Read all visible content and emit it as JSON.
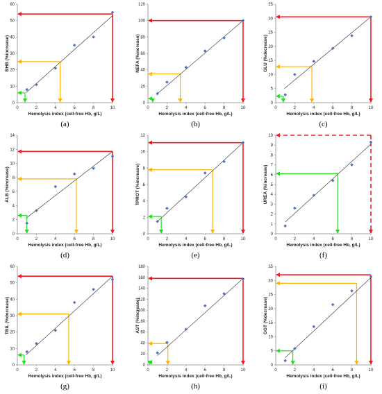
{
  "chart_data": [
    {
      "type": "scatter",
      "label": "(a)",
      "ylabel": "BHB (%increase)",
      "xlabel": "Hemolysis index (cell-free Hb, g/L)",
      "xlim": [
        0,
        10
      ],
      "ylim": [
        0,
        60
      ],
      "xticks": [
        0,
        2,
        4,
        6,
        8,
        10
      ],
      "yticks": [
        0,
        10,
        20,
        30,
        40,
        50,
        60
      ],
      "points": {
        "x": [
          1,
          2,
          4,
          6,
          8,
          10
        ],
        "y": [
          8,
          11,
          21,
          35,
          40,
          55
        ]
      },
      "fit": {
        "x": [
          0.9,
          10
        ],
        "y": [
          6,
          53
        ]
      },
      "arrows": [
        {
          "color": "#ee1c24",
          "x": 10,
          "y": 54,
          "dashed": false
        },
        {
          "color": "#ffb300",
          "x": 4.5,
          "y": 25
        },
        {
          "color": "#22dd22",
          "x": 0.8,
          "y": 6
        }
      ]
    },
    {
      "type": "scatter",
      "label": "(b)",
      "ylabel": "NEFA (%increase)",
      "xlabel": "Hemolysis index (cell-free Hb, g/L)",
      "xlim": [
        0,
        10
      ],
      "ylim": [
        0,
        120
      ],
      "xticks": [
        0,
        2,
        4,
        6,
        8,
        10
      ],
      "yticks": [
        0,
        20,
        40,
        60,
        80,
        100,
        120
      ],
      "points": {
        "x": [
          1,
          2,
          4,
          6,
          8,
          10
        ],
        "y": [
          11,
          25,
          43,
          63,
          79,
          100
        ]
      },
      "fit": {
        "x": [
          0.9,
          10
        ],
        "y": [
          10,
          100
        ]
      },
      "arrows": [
        {
          "color": "#ee1c24",
          "x": 10,
          "y": 100,
          "dashed": false
        },
        {
          "color": "#ffb300",
          "x": 3.4,
          "y": 35
        },
        {
          "color": "#22dd22",
          "x": 0.5,
          "y": 5
        }
      ]
    },
    {
      "type": "scatter",
      "label": "(c)",
      "ylabel": "GLU (%decrease)",
      "xlabel": "Hemolysis index (cell-free Hb, g/L)",
      "xlim": [
        0,
        10
      ],
      "ylim": [
        0,
        35
      ],
      "xticks": [
        0,
        2,
        4,
        6,
        8,
        10
      ],
      "yticks": [
        0,
        5,
        10,
        15,
        20,
        25,
        30,
        35
      ],
      "points": {
        "x": [
          1,
          2,
          4,
          6,
          8,
          10
        ],
        "y": [
          2.8,
          10,
          14.7,
          19.3,
          23.8,
          30.5
        ]
      },
      "fit": {
        "x": [
          0.9,
          10
        ],
        "y": [
          5,
          30.5
        ]
      },
      "arrows": [
        {
          "color": "#ee1c24",
          "x": 10,
          "y": 30.5,
          "dashed": false
        },
        {
          "color": "#ffb300",
          "x": 3.8,
          "y": 12.8
        },
        {
          "color": "#22dd22",
          "x": 0.8,
          "y": 2.3
        }
      ]
    },
    {
      "type": "scatter",
      "label": "(d)",
      "ylabel": "ALB (%increase)",
      "xlabel": "Hemolysis index (cell-free Hb, g/L)",
      "xlim": [
        0,
        10
      ],
      "ylim": [
        0,
        14
      ],
      "xticks": [
        0,
        2,
        4,
        6,
        8,
        10
      ],
      "yticks": [
        0,
        2,
        4,
        6,
        8,
        10,
        12,
        14
      ],
      "points": {
        "x": [
          1,
          2,
          4,
          6,
          8,
          10
        ],
        "y": [
          1.5,
          3.3,
          6.7,
          8.5,
          9.3,
          11.0
        ]
      },
      "fit": {
        "x": [
          1,
          10
        ],
        "y": [
          2.3,
          11.7
        ]
      },
      "arrows": [
        {
          "color": "#ee1c24",
          "x": 10,
          "y": 11.7,
          "dashed": false
        },
        {
          "color": "#ffb300",
          "x": 6.2,
          "y": 7.8
        },
        {
          "color": "#22dd22",
          "x": 1.0,
          "y": 2.6
        }
      ]
    },
    {
      "type": "scatter",
      "label": "(e)",
      "ylabel": "TPROT (%increase)",
      "xlabel": "Hemolysis index (cell-free Hb, g/L)",
      "xlim": [
        0,
        10
      ],
      "ylim": [
        0,
        12
      ],
      "xticks": [
        0,
        2,
        4,
        6,
        8,
        10
      ],
      "yticks": [
        0,
        2,
        4,
        6,
        8,
        10,
        12
      ],
      "points": {
        "x": [
          1,
          2,
          4,
          6,
          8,
          10
        ],
        "y": [
          1.5,
          3.1,
          4.5,
          7.4,
          8.8,
          11.1
        ]
      },
      "fit": {
        "x": [
          1,
          10
        ],
        "y": [
          1.5,
          11.1
        ]
      },
      "arrows": [
        {
          "color": "#ee1c24",
          "x": 10,
          "y": 11.1,
          "dashed": false
        },
        {
          "color": "#ffb300",
          "x": 6.8,
          "y": 7.8
        },
        {
          "color": "#22dd22",
          "x": 1.4,
          "y": 2.1
        }
      ]
    },
    {
      "type": "scatter",
      "label": "(f)",
      "ylabel": "UREA (%increase)",
      "xlabel": "Hemolysis index (cell-free Hb, g/L)",
      "xlim": [
        0,
        10
      ],
      "ylim": [
        0,
        10
      ],
      "xticks": [
        0,
        2,
        4,
        6,
        8,
        10
      ],
      "yticks": [
        0,
        1,
        2,
        3,
        4,
        5,
        6,
        7,
        8,
        9,
        10
      ],
      "points": {
        "x": [
          1,
          2,
          4,
          6,
          8,
          10
        ],
        "y": [
          0.8,
          2.6,
          3.9,
          5.4,
          7.0,
          9.3
        ]
      },
      "fit": {
        "x": [
          1,
          10
        ],
        "y": [
          1.2,
          9.1
        ]
      },
      "arrows": [
        {
          "color": "#ee1c24",
          "x": 10,
          "y": 10,
          "dashed": true
        },
        {
          "color": "#22dd22",
          "x": 6.5,
          "y": 6.1
        }
      ]
    },
    {
      "type": "scatter",
      "label": "(g)",
      "ylabel": "TBIL (%decrease)",
      "xlabel": "Hemolysis index (cell-free Hb, g/L)",
      "xlim": [
        0,
        10
      ],
      "ylim": [
        0,
        60
      ],
      "xticks": [
        0,
        2,
        4,
        6,
        8,
        10
      ],
      "yticks": [
        0,
        10,
        20,
        30,
        40,
        50,
        60
      ],
      "points": {
        "x": [
          1,
          2,
          4,
          6,
          8,
          10
        ],
        "y": [
          8,
          13,
          21,
          38,
          46,
          52
        ]
      },
      "fit": {
        "x": [
          0.9,
          10
        ],
        "y": [
          6,
          54
        ]
      },
      "arrows": [
        {
          "color": "#ee1c24",
          "x": 10,
          "y": 54,
          "dashed": false
        },
        {
          "color": "#ffb300",
          "x": 5.4,
          "y": 31
        },
        {
          "color": "#22dd22",
          "x": 0.7,
          "y": 6
        }
      ]
    },
    {
      "type": "scatter",
      "label": "(h)",
      "ylabel": "AST (%increase)",
      "xlabel": "Hemolysis index (cell-free Hb, g/L)",
      "xlim": [
        0,
        10
      ],
      "ylim": [
        0,
        180
      ],
      "xticks": [
        0,
        2,
        4,
        6,
        8,
        10
      ],
      "yticks": [
        0,
        20,
        40,
        60,
        80,
        100,
        120,
        140,
        160,
        180
      ],
      "points": {
        "x": [
          1,
          2,
          4,
          6,
          8,
          10
        ],
        "y": [
          22,
          41,
          65,
          108,
          130,
          157
        ]
      },
      "fit": {
        "x": [
          1,
          10
        ],
        "y": [
          17,
          158
        ]
      },
      "arrows": [
        {
          "color": "#ee1c24",
          "x": 10,
          "y": 158,
          "dashed": false
        },
        {
          "color": "#ffb300",
          "x": 2.1,
          "y": 39
        },
        {
          "color": "#22dd22",
          "x": 0.2,
          "y": 5
        }
      ]
    },
    {
      "type": "scatter",
      "label": "(i)",
      "ylabel": "GGT (%decrease)",
      "xlabel": "Hemolysis index (cell-free Hb, g/L)",
      "xlim": [
        0,
        10
      ],
      "ylim": [
        0,
        35
      ],
      "xticks": [
        0,
        2,
        4,
        6,
        8,
        10
      ],
      "yticks": [
        0,
        5,
        10,
        15,
        20,
        25,
        30,
        35
      ],
      "points": {
        "x": [
          1,
          2,
          4,
          6,
          8,
          10
        ],
        "y": [
          1.5,
          5.8,
          13.6,
          21.4,
          26.3,
          31.3
        ]
      },
      "fit": {
        "x": [
          1,
          10
        ],
        "y": [
          2.6,
          31
        ]
      },
      "arrows": [
        {
          "color": "#ee1c24",
          "x": 10,
          "y": 32,
          "dashed": false
        },
        {
          "color": "#ffb300",
          "x": 8.5,
          "y": 29
        },
        {
          "color": "#22dd22",
          "x": 1.8,
          "y": 5
        }
      ]
    }
  ]
}
